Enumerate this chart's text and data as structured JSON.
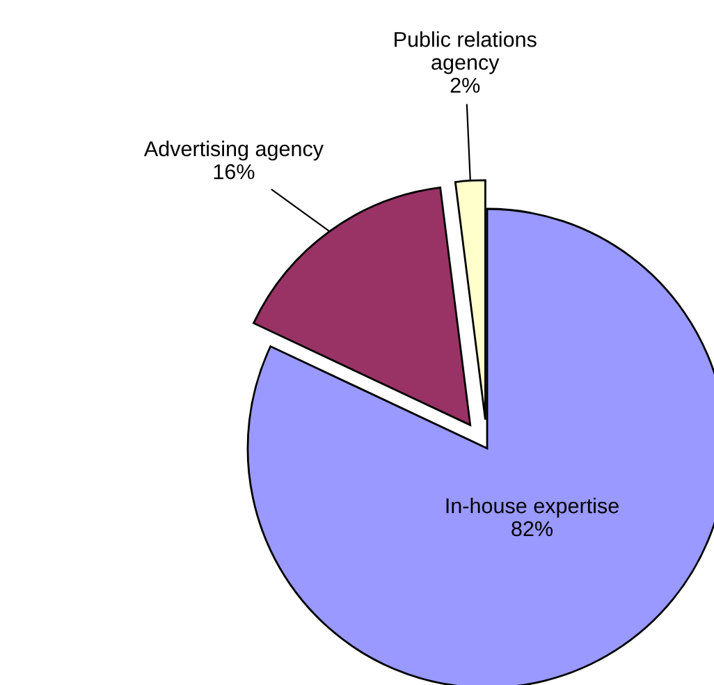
{
  "chart_data": {
    "type": "pie",
    "categories": [
      "In-house expertise",
      "Advertising agency",
      "Public relations agency"
    ],
    "values": [
      82,
      16,
      2
    ],
    "colors": [
      "#9999ff",
      "#993366",
      "#ffffcc"
    ],
    "value_labels": [
      "82%",
      "16%",
      "2%"
    ]
  }
}
